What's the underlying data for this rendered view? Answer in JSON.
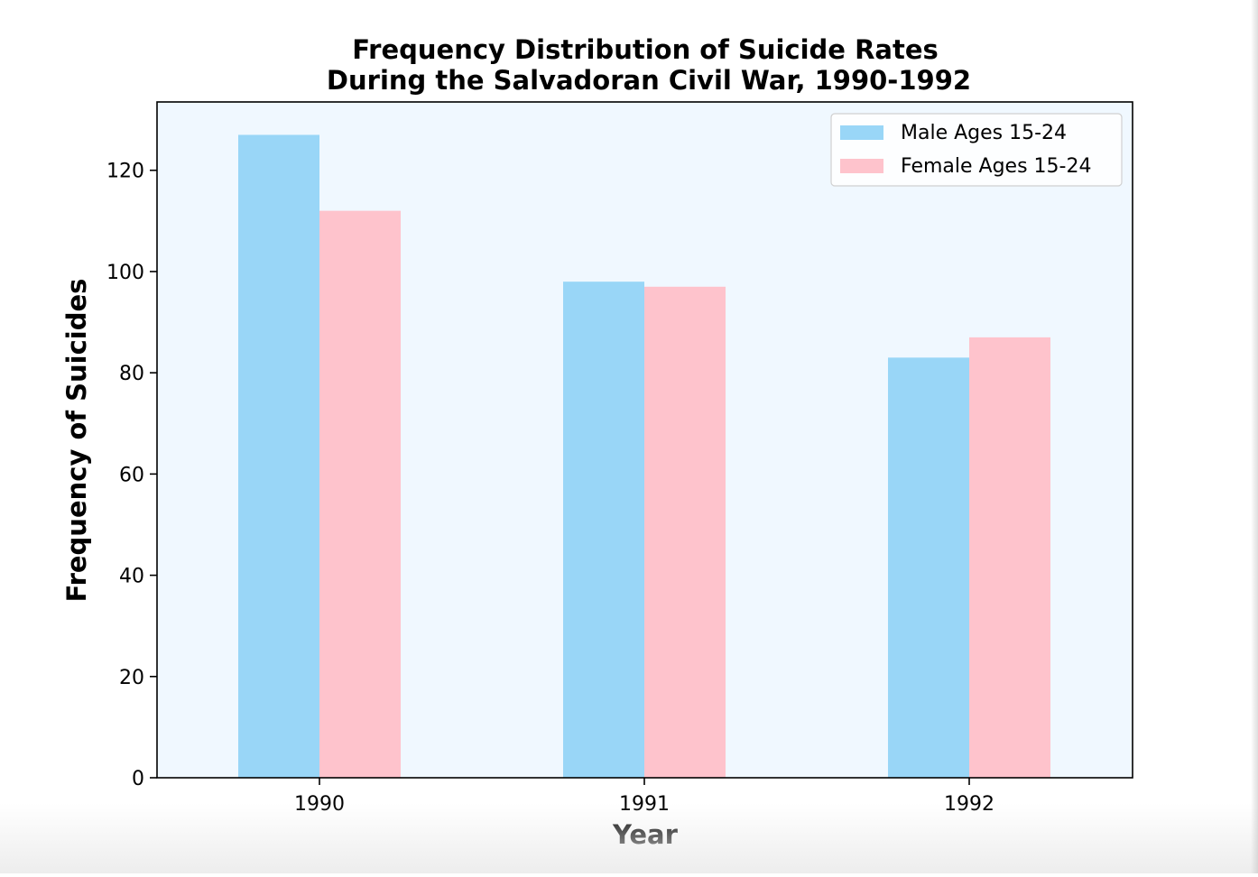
{
  "chart_data": {
    "type": "bar",
    "title_line1": "Frequency Distribution of Suicide Rates",
    "title_line2": "During the Salvadoran Civil War, 1990-1992",
    "xlabel": "Year",
    "ylabel": "Frequency of Suicides",
    "categories": [
      "1990",
      "1991",
      "1992"
    ],
    "series": [
      {
        "name": "Male Ages 15-24",
        "values": [
          127,
          98,
          83
        ],
        "color": "#99d6f7"
      },
      {
        "name": "Female Ages 15-24",
        "values": [
          112,
          97,
          87
        ],
        "color": "#fec3cc"
      }
    ],
    "ylim": [
      0,
      133.5
    ],
    "yticks": [
      0,
      20,
      40,
      60,
      80,
      100,
      120
    ],
    "plot_background": "#f0f8ff",
    "grid": false,
    "legend_position": "upper right"
  }
}
